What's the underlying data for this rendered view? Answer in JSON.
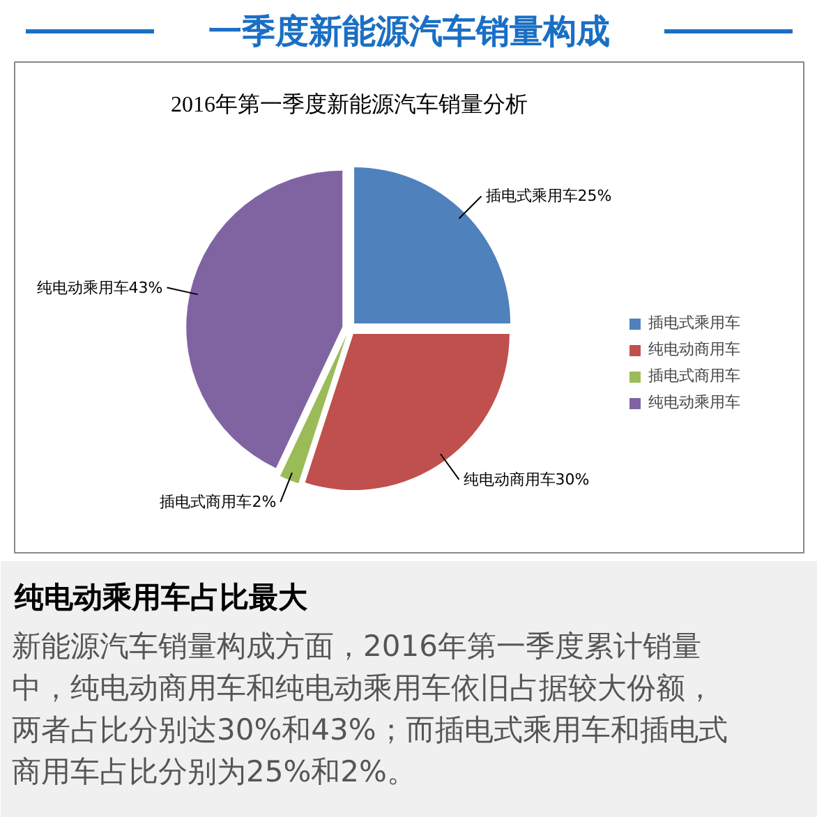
{
  "chart_data": {
    "type": "pie",
    "title": "一季度新能源汽车销量构成",
    "subtitle": "2016年第一季度新能源汽车销量分析",
    "categories": [
      "插电式乘用车",
      "纯电动商用车",
      "插电式商用车",
      "纯电动乘用车"
    ],
    "values": [
      25,
      30,
      2,
      43
    ],
    "colors": [
      "#4f81bd",
      "#c0504d",
      "#9bbb59",
      "#8064a2"
    ],
    "value_labels": [
      "插电式乘用车25%",
      "纯电动商用车30%",
      "插电式商用车2%",
      "纯电动乘用车43%"
    ],
    "legend": "right",
    "annotations": [
      "纯电动乘用车占比最大",
      "新能源汽车销量构成方面，2016年第一季度累计销量中，纯电动商用车和纯电动乘用车依旧占据较大份额，两者占比分别达30%和43%；而插电式乘用车和插电式商用车占比分别为25%和2%。"
    ]
  }
}
